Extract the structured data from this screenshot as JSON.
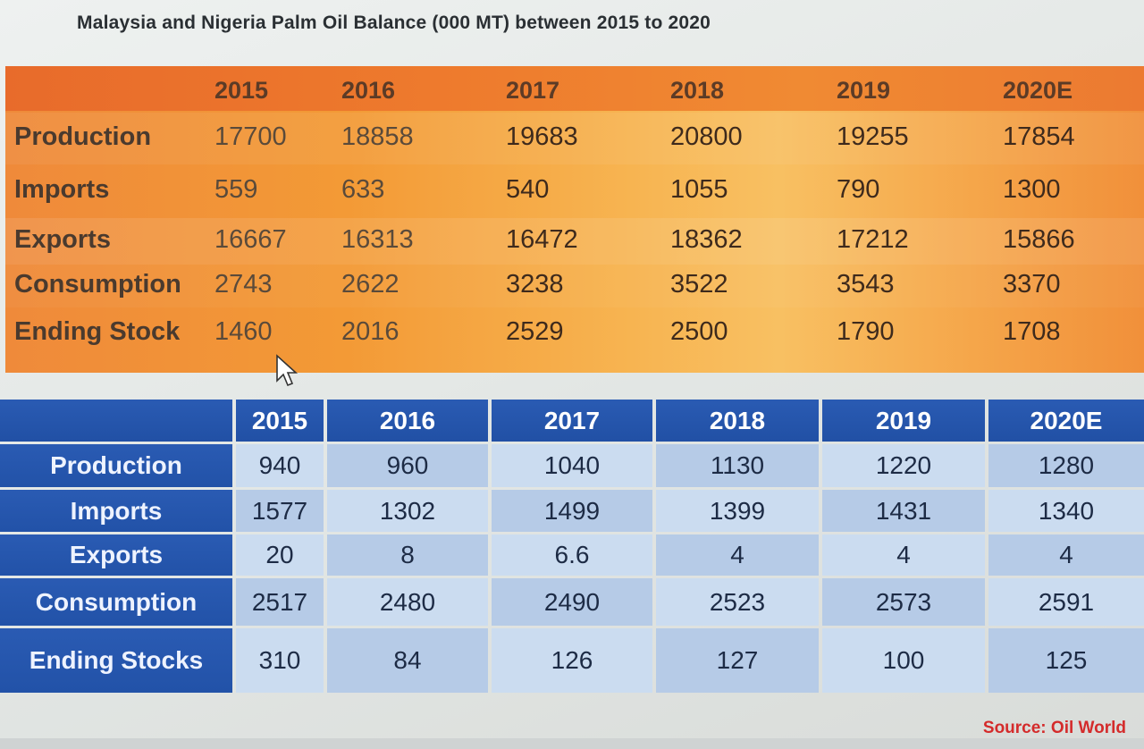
{
  "title": "Malaysia and Nigeria Palm Oil Balance (000 MT) between 2015 to 2020",
  "source": "Source: Oil World",
  "chart_data": [
    {
      "type": "table",
      "columns": [
        "2015",
        "2016",
        "2017",
        "2018",
        "2019",
        "2020E"
      ],
      "rows": [
        {
          "label": "Production",
          "values": [
            "17700",
            "18858",
            "19683",
            "20800",
            "19255",
            "17854"
          ]
        },
        {
          "label": "Imports",
          "values": [
            "559",
            "633",
            "540",
            "1055",
            "790",
            "1300"
          ]
        },
        {
          "label": "Exports",
          "values": [
            "16667",
            "16313",
            "16472",
            "18362",
            "17212",
            "15866"
          ]
        },
        {
          "label": "Consumption",
          "values": [
            "2743",
            "2622",
            "3238",
            "3522",
            "3543",
            "3370"
          ]
        },
        {
          "label": "Ending Stock",
          "values": [
            "1460",
            "2016",
            "2529",
            "2500",
            "1790",
            "1708"
          ]
        }
      ]
    },
    {
      "type": "table",
      "columns": [
        "2015",
        "2016",
        "2017",
        "2018",
        "2019",
        "2020E"
      ],
      "rows": [
        {
          "label": "Production",
          "values": [
            "940",
            "960",
            "1040",
            "1130",
            "1220",
            "1280"
          ]
        },
        {
          "label": "Imports",
          "values": [
            "1577",
            "1302",
            "1499",
            "1399",
            "1431",
            "1340"
          ]
        },
        {
          "label": "Exports",
          "values": [
            "20",
            "8",
            "6.6",
            "4",
            "4",
            "4"
          ]
        },
        {
          "label": "Consumption",
          "values": [
            "2517",
            "2480",
            "2490",
            "2523",
            "2573",
            "2591"
          ]
        },
        {
          "label": "Ending Stocks",
          "values": [
            "310",
            "84",
            "126",
            "127",
            "100",
            "125"
          ]
        }
      ]
    }
  ],
  "colors": {
    "orange_header": "#e86b2b",
    "blue_header": "#2150a5",
    "blue_cell_light": "#cbdcf0",
    "source_red": "#d42b2b"
  },
  "icons": {
    "cursor": "mouse-pointer-icon"
  }
}
